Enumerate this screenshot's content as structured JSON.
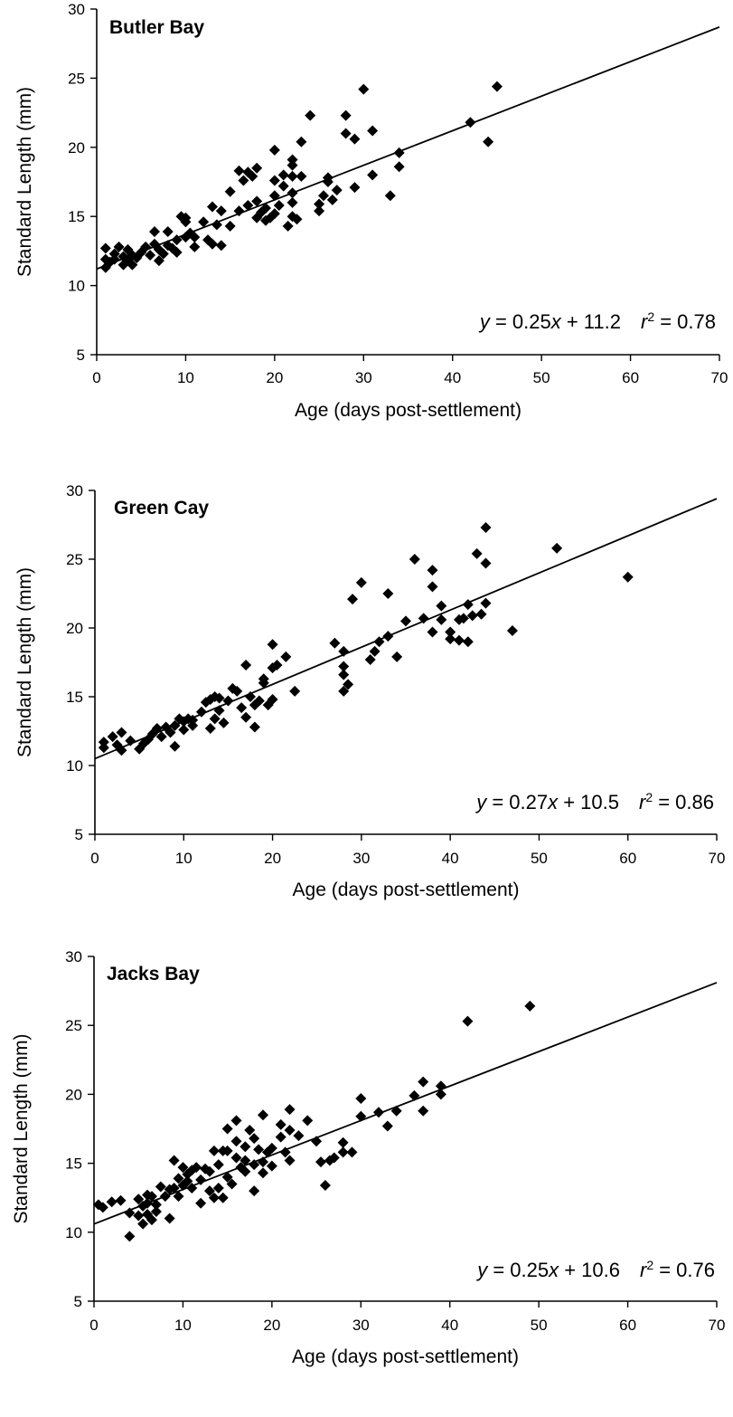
{
  "chart_data": [
    {
      "type": "scatter",
      "title": "Butler Bay",
      "xlabel": "Age (days post-settlement)",
      "ylabel": "Standard Length (mm)",
      "xlim": [
        0,
        70
      ],
      "ylim": [
        5,
        30
      ],
      "xticks": [
        "0",
        "10",
        "20",
        "30",
        "40",
        "50",
        "60",
        "70"
      ],
      "yticks": [
        "5",
        "10",
        "15",
        "20",
        "25",
        "30"
      ],
      "equation": {
        "y_var": "y",
        "eq_sign": " = 0.25",
        "x_var": "x",
        "rest": " + 11.2",
        "r_var": "r",
        "r_exp": "2",
        "r_val": " = 0.78"
      },
      "fit": {
        "slope": 0.25,
        "intercept": 11.2
      },
      "points": [
        [
          1,
          11.3
        ],
        [
          1,
          11.9
        ],
        [
          1,
          12.7
        ],
        [
          1.5,
          11.7
        ],
        [
          2,
          12.3
        ],
        [
          2,
          11.9
        ],
        [
          2.5,
          12.8
        ],
        [
          3,
          12.1
        ],
        [
          3,
          11.5
        ],
        [
          3.5,
          12.6
        ],
        [
          3.5,
          11.8
        ],
        [
          4,
          12.2
        ],
        [
          4,
          11.5
        ],
        [
          4.5,
          12.0
        ],
        [
          5,
          12.4
        ],
        [
          5.5,
          12.8
        ],
        [
          6,
          12.2
        ],
        [
          6.5,
          13.0
        ],
        [
          6.5,
          13.9
        ],
        [
          7,
          12.6
        ],
        [
          7,
          11.8
        ],
        [
          7.5,
          12.3
        ],
        [
          8,
          12.9
        ],
        [
          8,
          13.9
        ],
        [
          8.5,
          12.7
        ],
        [
          9,
          12.4
        ],
        [
          9,
          13.3
        ],
        [
          9.5,
          15.0
        ],
        [
          10,
          14.6
        ],
        [
          10,
          13.5
        ],
        [
          10,
          14.9
        ],
        [
          10.5,
          13.8
        ],
        [
          11,
          12.8
        ],
        [
          11,
          13.5
        ],
        [
          12,
          14.6
        ],
        [
          12.5,
          13.3
        ],
        [
          13,
          15.7
        ],
        [
          13,
          13.0
        ],
        [
          13.5,
          14.4
        ],
        [
          14,
          15.4
        ],
        [
          14,
          12.9
        ],
        [
          15,
          14.3
        ],
        [
          15,
          16.8
        ],
        [
          16,
          18.3
        ],
        [
          16,
          15.4
        ],
        [
          16.5,
          17.6
        ],
        [
          17,
          18.2
        ],
        [
          17,
          15.8
        ],
        [
          17.5,
          17.9
        ],
        [
          18,
          14.9
        ],
        [
          18,
          16.1
        ],
        [
          18,
          18.5
        ],
        [
          18.5,
          15.3
        ],
        [
          19,
          14.7
        ],
        [
          19,
          15.6
        ],
        [
          19.5,
          14.9
        ],
        [
          20,
          15.2
        ],
        [
          20,
          16.5
        ],
        [
          20,
          17.6
        ],
        [
          20,
          19.8
        ],
        [
          20.5,
          15.8
        ],
        [
          21,
          17.2
        ],
        [
          21,
          18.0
        ],
        [
          21.5,
          14.3
        ],
        [
          22,
          17.9
        ],
        [
          22,
          15.0
        ],
        [
          22,
          16.0
        ],
        [
          22,
          16.7
        ],
        [
          22,
          19.1
        ],
        [
          22,
          18.7
        ],
        [
          22.5,
          14.8
        ],
        [
          23,
          17.9
        ],
        [
          23,
          20.4
        ],
        [
          24,
          22.3
        ],
        [
          25,
          15.4
        ],
        [
          25,
          15.9
        ],
        [
          25.5,
          16.5
        ],
        [
          26,
          17.5
        ],
        [
          26,
          17.8
        ],
        [
          26.5,
          16.2
        ],
        [
          27,
          16.9
        ],
        [
          28,
          22.3
        ],
        [
          28,
          21.0
        ],
        [
          29,
          20.6
        ],
        [
          29,
          17.1
        ],
        [
          30,
          24.2
        ],
        [
          31,
          21.2
        ],
        [
          31,
          18.0
        ],
        [
          33,
          16.5
        ],
        [
          34,
          19.6
        ],
        [
          34,
          18.6
        ],
        [
          42,
          21.8
        ],
        [
          44,
          20.4
        ],
        [
          45,
          24.4
        ]
      ]
    },
    {
      "type": "scatter",
      "title": "Green Cay",
      "xlabel": "Age (days post-settlement)",
      "ylabel": "Standard Length (mm)",
      "xlim": [
        0,
        70
      ],
      "ylim": [
        5,
        30
      ],
      "xticks": [
        "0",
        "10",
        "20",
        "30",
        "40",
        "50",
        "60",
        "70"
      ],
      "yticks": [
        "5",
        "10",
        "15",
        "20",
        "25",
        "30"
      ],
      "equation": {
        "y_var": "y",
        "eq_sign": " = 0.27",
        "x_var": "x",
        "rest": " + 10.5",
        "r_var": "r",
        "r_exp": "2",
        "r_val": " = 0.86"
      },
      "fit": {
        "slope": 0.27,
        "intercept": 10.5
      },
      "points": [
        [
          1,
          11.7
        ],
        [
          1,
          11.3
        ],
        [
          2,
          12.1
        ],
        [
          2.5,
          11.5
        ],
        [
          3,
          12.4
        ],
        [
          3,
          11.1
        ],
        [
          4,
          11.8
        ],
        [
          5,
          11.2
        ],
        [
          5.5,
          11.6
        ],
        [
          6,
          11.9
        ],
        [
          6.5,
          12.3
        ],
        [
          7,
          12.7
        ],
        [
          7.5,
          12.1
        ],
        [
          8,
          12.8
        ],
        [
          8.5,
          12.4
        ],
        [
          9,
          11.4
        ],
        [
          9,
          12.9
        ],
        [
          9.5,
          13.4
        ],
        [
          10,
          12.6
        ],
        [
          10,
          13.2
        ],
        [
          10.5,
          13.4
        ],
        [
          11,
          12.9
        ],
        [
          11,
          13.3
        ],
        [
          12,
          13.9
        ],
        [
          12.5,
          14.6
        ],
        [
          13,
          14.8
        ],
        [
          13,
          12.7
        ],
        [
          13.5,
          15.0
        ],
        [
          13.5,
          13.4
        ],
        [
          14,
          14.0
        ],
        [
          14,
          14.9
        ],
        [
          14.5,
          13.1
        ],
        [
          15,
          14.7
        ],
        [
          15.5,
          15.6
        ],
        [
          16,
          15.4
        ],
        [
          16.5,
          14.2
        ],
        [
          17,
          17.3
        ],
        [
          17,
          13.5
        ],
        [
          17.5,
          15.0
        ],
        [
          18,
          14.4
        ],
        [
          18,
          12.8
        ],
        [
          18.5,
          14.7
        ],
        [
          19,
          16.3
        ],
        [
          19,
          16.0
        ],
        [
          19.5,
          14.4
        ],
        [
          20,
          17.1
        ],
        [
          20,
          14.8
        ],
        [
          20,
          18.8
        ],
        [
          20.5,
          17.3
        ],
        [
          21.5,
          17.9
        ],
        [
          22.5,
          15.4
        ],
        [
          27,
          18.9
        ],
        [
          28,
          18.3
        ],
        [
          28,
          17.2
        ],
        [
          28,
          16.6
        ],
        [
          28,
          15.4
        ],
        [
          28.5,
          15.9
        ],
        [
          29,
          22.1
        ],
        [
          30,
          23.3
        ],
        [
          31,
          17.7
        ],
        [
          31.5,
          18.3
        ],
        [
          32,
          19.0
        ],
        [
          33,
          22.5
        ],
        [
          33,
          19.4
        ],
        [
          34,
          17.9
        ],
        [
          35,
          20.5
        ],
        [
          36,
          25.0
        ],
        [
          37,
          20.7
        ],
        [
          38,
          24.2
        ],
        [
          38,
          23.0
        ],
        [
          38,
          19.7
        ],
        [
          39,
          21.6
        ],
        [
          39,
          20.6
        ],
        [
          40,
          19.2
        ],
        [
          40,
          19.7
        ],
        [
          41,
          20.6
        ],
        [
          41,
          19.1
        ],
        [
          41.5,
          20.7
        ],
        [
          42,
          21.7
        ],
        [
          42,
          19.0
        ],
        [
          42.5,
          20.9
        ],
        [
          43,
          25.4
        ],
        [
          43.5,
          21.0
        ],
        [
          44,
          27.3
        ],
        [
          44,
          24.7
        ],
        [
          44,
          21.8
        ],
        [
          47,
          19.8
        ],
        [
          52,
          25.8
        ],
        [
          60,
          23.7
        ]
      ]
    },
    {
      "type": "scatter",
      "title": "Jacks Bay",
      "xlabel": "Age (days post-settlement)",
      "ylabel": "Standard Length (mm)",
      "xlim": [
        0,
        70
      ],
      "ylim": [
        5,
        30
      ],
      "xticks": [
        "0",
        "10",
        "20",
        "30",
        "40",
        "50",
        "60",
        "70"
      ],
      "yticks": [
        "5",
        "10",
        "15",
        "20",
        "25",
        "30"
      ],
      "equation": {
        "y_var": "y",
        "eq_sign": " = 0.25",
        "x_var": "x",
        "rest": " + 10.6",
        "r_var": "r",
        "r_exp": "2",
        "r_val": " = 0.76"
      },
      "fit": {
        "slope": 0.25,
        "intercept": 10.6
      },
      "points": [
        [
          0.5,
          12.0
        ],
        [
          1,
          11.8
        ],
        [
          2,
          12.2
        ],
        [
          3,
          12.3
        ],
        [
          4,
          9.7
        ],
        [
          4,
          11.4
        ],
        [
          5,
          11.2
        ],
        [
          5,
          12.4
        ],
        [
          5.5,
          10.6
        ],
        [
          5.5,
          11.9
        ],
        [
          6,
          12.7
        ],
        [
          6,
          12.1
        ],
        [
          6,
          11.3
        ],
        [
          6.5,
          12.6
        ],
        [
          6.5,
          10.9
        ],
        [
          7,
          12.0
        ],
        [
          7,
          11.5
        ],
        [
          7.5,
          13.3
        ],
        [
          8,
          12.6
        ],
        [
          8.5,
          13.1
        ],
        [
          8.5,
          11.0
        ],
        [
          9,
          15.2
        ],
        [
          9,
          13.2
        ],
        [
          9.5,
          12.6
        ],
        [
          9.5,
          13.9
        ],
        [
          10,
          14.7
        ],
        [
          10,
          13.4
        ],
        [
          10.5,
          14.2
        ],
        [
          10.5,
          13.7
        ],
        [
          11,
          14.5
        ],
        [
          11,
          13.2
        ],
        [
          11.5,
          14.7
        ],
        [
          12,
          12.1
        ],
        [
          12,
          13.8
        ],
        [
          12.5,
          14.6
        ],
        [
          13,
          14.4
        ],
        [
          13,
          13.0
        ],
        [
          13.5,
          15.9
        ],
        [
          13.5,
          12.5
        ],
        [
          14,
          14.9
        ],
        [
          14,
          13.2
        ],
        [
          14.5,
          15.9
        ],
        [
          14.5,
          12.5
        ],
        [
          15,
          15.9
        ],
        [
          15,
          17.5
        ],
        [
          15,
          14.0
        ],
        [
          15.5,
          13.5
        ],
        [
          16,
          18.1
        ],
        [
          16,
          16.6
        ],
        [
          16,
          15.4
        ],
        [
          16.5,
          14.7
        ],
        [
          17,
          16.2
        ],
        [
          17,
          15.2
        ],
        [
          17,
          14.4
        ],
        [
          17.5,
          17.4
        ],
        [
          18,
          16.8
        ],
        [
          18,
          14.9
        ],
        [
          18,
          13.0
        ],
        [
          18.5,
          16.0
        ],
        [
          19,
          18.5
        ],
        [
          19,
          15.1
        ],
        [
          19,
          14.3
        ],
        [
          19.5,
          15.8
        ],
        [
          20,
          16.1
        ],
        [
          20,
          14.8
        ],
        [
          21,
          17.8
        ],
        [
          21,
          16.9
        ],
        [
          21.5,
          15.8
        ],
        [
          22,
          18.9
        ],
        [
          22,
          17.4
        ],
        [
          22,
          15.2
        ],
        [
          23,
          17.0
        ],
        [
          24,
          18.1
        ],
        [
          25,
          16.6
        ],
        [
          25.5,
          15.1
        ],
        [
          26,
          13.4
        ],
        [
          26.5,
          15.2
        ],
        [
          27,
          15.4
        ],
        [
          28,
          16.5
        ],
        [
          28,
          15.8
        ],
        [
          29,
          15.8
        ],
        [
          30,
          19.7
        ],
        [
          30,
          18.4
        ],
        [
          32,
          18.7
        ],
        [
          33,
          17.7
        ],
        [
          34,
          18.8
        ],
        [
          36,
          19.9
        ],
        [
          37,
          20.9
        ],
        [
          37,
          18.8
        ],
        [
          39,
          20.6
        ],
        [
          39,
          20.0
        ],
        [
          42,
          25.3
        ],
        [
          49,
          26.4
        ]
      ]
    }
  ]
}
